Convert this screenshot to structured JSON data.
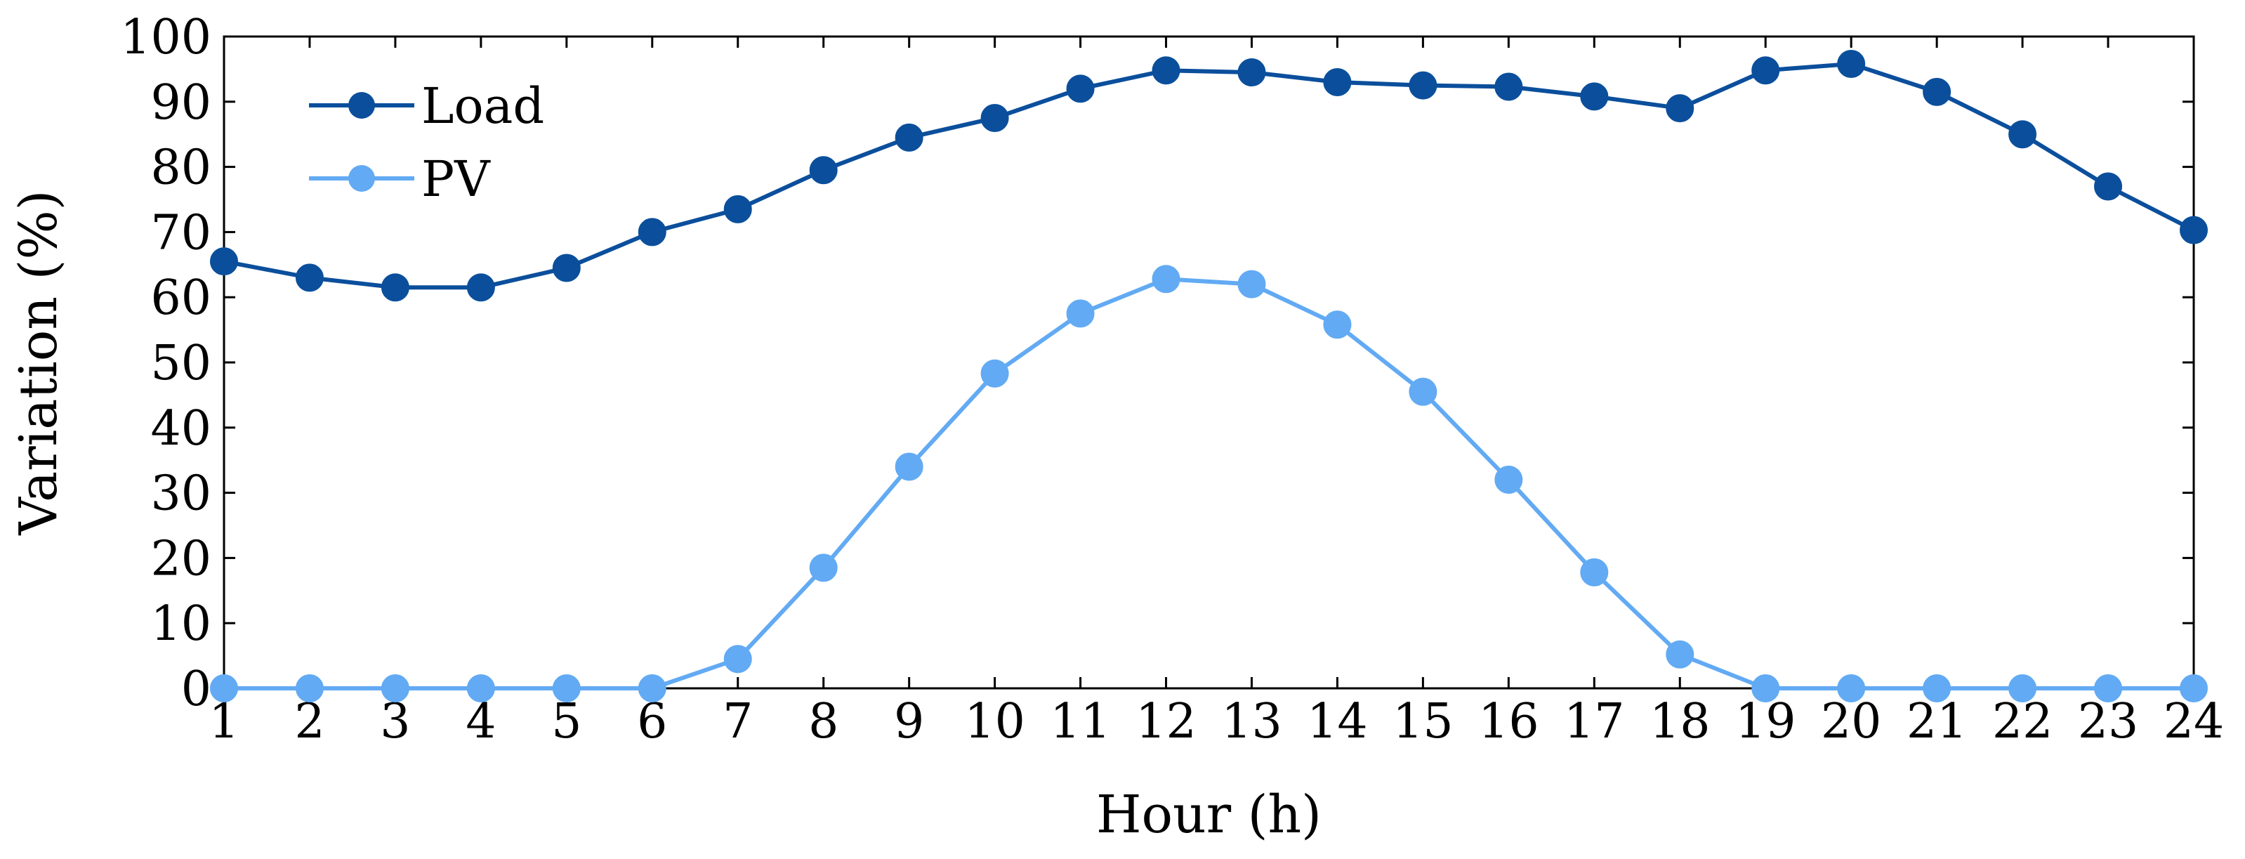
{
  "chart_data": {
    "type": "line",
    "title": "",
    "xlabel": "Hour (h)",
    "ylabel": "Variation (%)",
    "x": [
      1,
      2,
      3,
      4,
      5,
      6,
      7,
      8,
      9,
      10,
      11,
      12,
      13,
      14,
      15,
      16,
      17,
      18,
      19,
      20,
      21,
      22,
      23,
      24
    ],
    "x_tick_labels": [
      "1",
      "2",
      "3",
      "4",
      "5",
      "6",
      "7",
      "8",
      "9",
      "10",
      "11",
      "12",
      "13",
      "14",
      "15",
      "16",
      "17",
      "18",
      "19",
      "20",
      "21",
      "22",
      "23",
      "24"
    ],
    "xlim": [
      1,
      24
    ],
    "ylim": [
      0,
      100
    ],
    "y_ticks": [
      0,
      10,
      20,
      30,
      40,
      50,
      60,
      70,
      80,
      90,
      100
    ],
    "y_tick_labels": [
      "0",
      "10",
      "20",
      "30",
      "40",
      "50",
      "60",
      "70",
      "80",
      "90",
      "100"
    ],
    "grid": false,
    "legend_position": "top-left",
    "series": [
      {
        "name": "Load",
        "color": "#0b4f9c",
        "marker": "circle",
        "values": [
          65.5,
          63,
          61.5,
          61.5,
          64.5,
          70,
          73.5,
          79.5,
          84.5,
          87.5,
          92,
          94.8,
          94.5,
          93,
          92.5,
          92.3,
          90.8,
          89,
          94.8,
          95.8,
          91.5,
          85,
          77,
          70.3
        ]
      },
      {
        "name": "PV",
        "color": "#62aaf3",
        "marker": "circle",
        "values": [
          0,
          0,
          0,
          0,
          0,
          0,
          4.5,
          18.5,
          34,
          48.3,
          57.5,
          62.8,
          62,
          55.8,
          45.5,
          32,
          17.8,
          5.2,
          0,
          0,
          0,
          0,
          0,
          0
        ]
      }
    ]
  }
}
